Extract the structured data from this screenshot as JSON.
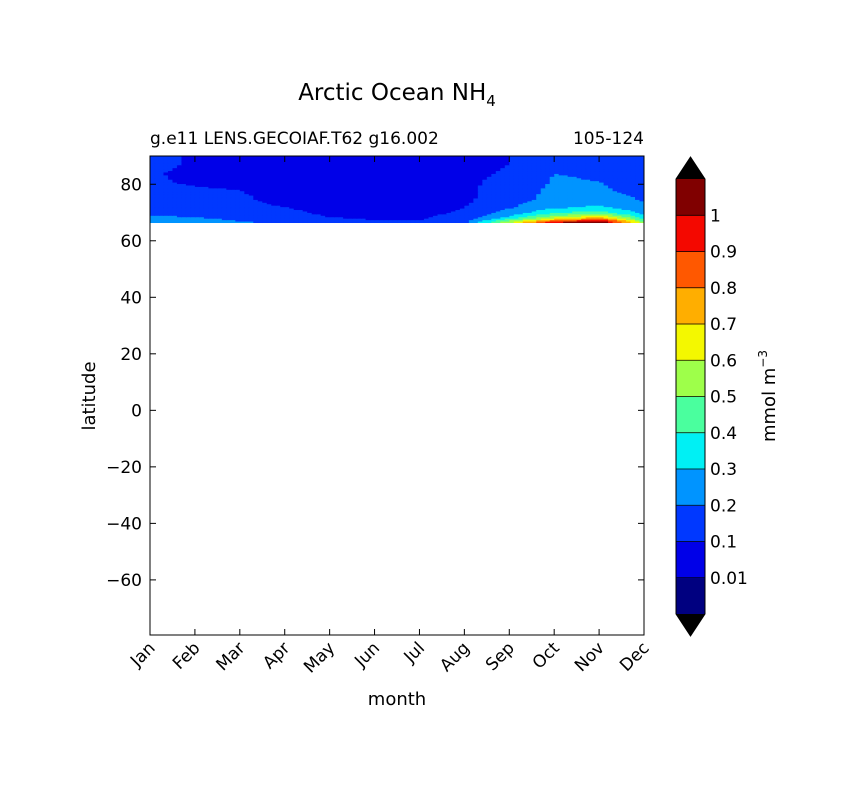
{
  "chart_data": {
    "type": "heatmap",
    "title": "Arctic Ocean NH",
    "title_subscript": "4",
    "subtitle_left": "g.e11 LENS.GECOIAF.T62 g16.002",
    "subtitle_right": "105-124",
    "xlabel": "month",
    "ylabel": "latitude",
    "x_categories": [
      "Jan",
      "Feb",
      "Mar",
      "Apr",
      "May",
      "Jun",
      "Jul",
      "Aug",
      "Sep",
      "Oct",
      "Nov",
      "Dec"
    ],
    "xlim": [
      0,
      11
    ],
    "ylim": [
      -79.5,
      90
    ],
    "y_ticks": [
      80,
      60,
      40,
      20,
      0,
      -20,
      -40,
      -60
    ],
    "y_tick_labels": [
      "80",
      "60",
      "40",
      "20",
      "0",
      "−20",
      "−40",
      "−60"
    ],
    "data_lat_range": [
      66.5,
      90
    ],
    "colorbar": {
      "label": "mmol m",
      "label_superscript": "−3",
      "extend": "both",
      "levels": [
        0,
        0.01,
        0.1,
        0.2,
        0.3,
        0.4,
        0.5,
        0.6,
        0.7,
        0.8,
        0.9,
        1,
        1.1
      ],
      "tick_values": [
        0.01,
        0.1,
        0.2,
        0.3,
        0.4,
        0.5,
        0.6,
        0.7,
        0.8,
        0.9,
        1
      ],
      "tick_labels": [
        "0.01",
        "0.1",
        "0.2",
        "0.3",
        "0.4",
        "0.5",
        "0.6",
        "0.7",
        "0.8",
        "0.9",
        "1"
      ],
      "colors": [
        "#000080",
        "#0000e8",
        "#0038ff",
        "#0094ff",
        "#00f0f4",
        "#4aff9e",
        "#9eff4a",
        "#f4f800",
        "#ffae00",
        "#ff5800",
        "#f40800",
        "#800000"
      ],
      "under_color": "#000000",
      "over_color": "#000000"
    },
    "field": {
      "months": [
        0,
        1,
        2,
        3,
        4,
        5,
        6,
        7,
        8,
        9,
        10,
        11
      ],
      "latitudes": [
        66.5,
        67.5,
        68.5,
        70,
        72,
        75,
        78,
        81,
        84,
        87,
        90
      ],
      "values": [
        [
          0.3,
          0.28,
          0.22,
          0.18,
          0.14,
          0.12,
          0.12,
          0.18,
          0.62,
          1.05,
          1.15,
          0.55
        ],
        [
          0.26,
          0.24,
          0.19,
          0.15,
          0.12,
          0.1,
          0.1,
          0.15,
          0.45,
          0.75,
          0.95,
          0.45
        ],
        [
          0.22,
          0.2,
          0.16,
          0.13,
          0.1,
          0.09,
          0.09,
          0.13,
          0.32,
          0.55,
          0.7,
          0.35
        ],
        [
          0.18,
          0.16,
          0.14,
          0.11,
          0.09,
          0.08,
          0.08,
          0.11,
          0.24,
          0.4,
          0.45,
          0.28
        ],
        [
          0.15,
          0.14,
          0.12,
          0.1,
          0.09,
          0.08,
          0.08,
          0.1,
          0.19,
          0.28,
          0.32,
          0.22
        ],
        [
          0.13,
          0.12,
          0.11,
          0.08,
          0.08,
          0.07,
          0.07,
          0.08,
          0.16,
          0.23,
          0.25,
          0.19
        ],
        [
          0.12,
          0.11,
          0.1,
          0.08,
          0.07,
          0.07,
          0.07,
          0.08,
          0.15,
          0.22,
          0.22,
          0.16
        ],
        [
          0.11,
          0.09,
          0.08,
          0.07,
          0.07,
          0.07,
          0.07,
          0.08,
          0.13,
          0.21,
          0.2,
          0.14
        ],
        [
          0.11,
          0.08,
          0.08,
          0.07,
          0.07,
          0.07,
          0.07,
          0.08,
          0.11,
          0.2,
          0.19,
          0.12
        ],
        [
          0.12,
          0.09,
          0.08,
          0.07,
          0.07,
          0.07,
          0.07,
          0.08,
          0.1,
          0.19,
          0.18,
          0.12
        ],
        [
          0.12,
          0.09,
          0.08,
          0.07,
          0.07,
          0.07,
          0.07,
          0.08,
          0.1,
          0.19,
          0.18,
          0.12
        ]
      ]
    },
    "grid": false
  }
}
